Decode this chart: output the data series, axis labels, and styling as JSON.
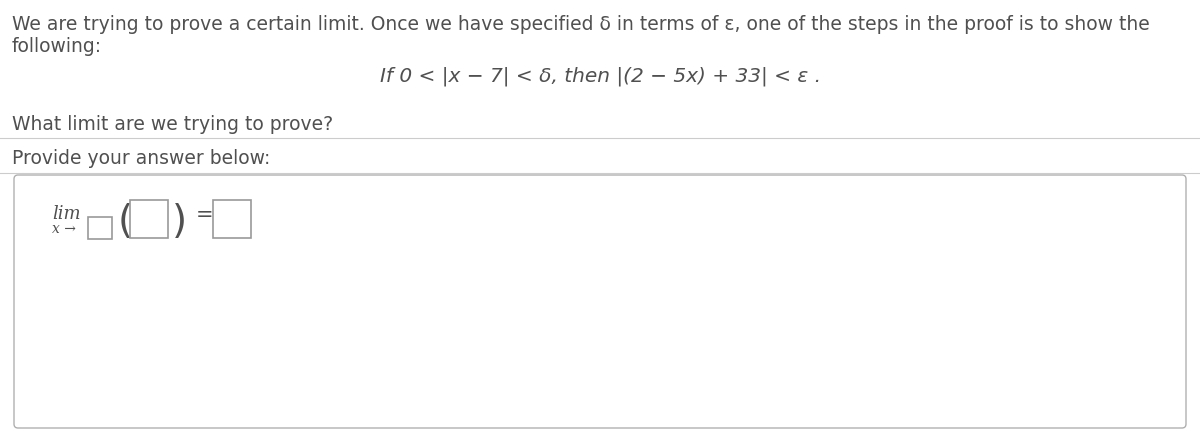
{
  "bg_color": "#ffffff",
  "text_color": "#505050",
  "line_color": "#cccccc",
  "line1": "We are trying to prove a certain limit. Once we have specified δ in terms of ε, one of the steps in the proof is to show the",
  "line2": "following:",
  "math_line": "If 0 < |x − 7| < δ, then |(2 − 5x) + 33| < ε .",
  "question": "What limit are we trying to prove?",
  "provide": "Provide your answer below:",
  "box_border_color": "#b0b0b0",
  "box_bg_color": "#ffffff",
  "input_border_color": "#999999",
  "font_size_main": 13.5,
  "font_size_math": 14.5,
  "lim_text": "lim",
  "x_arrow": "x →",
  "equals": "="
}
